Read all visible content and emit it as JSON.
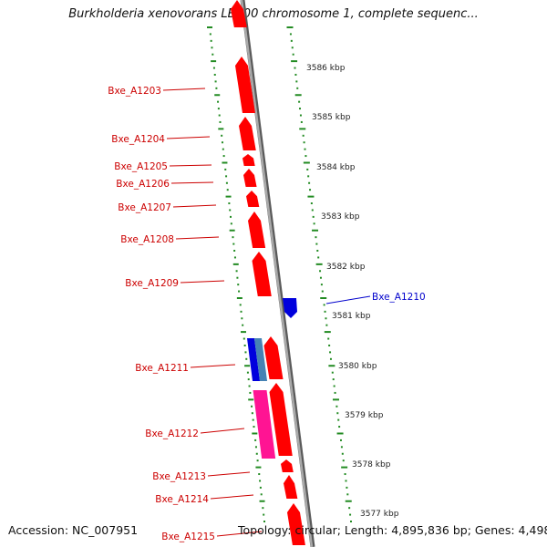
{
  "title": "Burkholderia xenovorans LB400 chromosome 1, complete sequenc...",
  "footer": {
    "accession": "Accession: NC_007951",
    "topology": "Topology: circular; Length: 4,895,836 bp; Genes: 4,498"
  },
  "colors": {
    "forward_gene": "#ff0000",
    "reverse_gene": "#0000dd",
    "pink_gene": "#ff1493",
    "steelblue_gene": "#4682b4",
    "backbone": "#888888",
    "tick": "#228b22",
    "forward_label": "#cc0000",
    "reverse_label": "#0000cc"
  },
  "scale_labels": [
    "3586 kbp",
    "3585 kbp",
    "3584 kbp",
    "3583 kbp",
    "3582 kbp",
    "3581 kbp",
    "3580 kbp",
    "3579 kbp",
    "3578 kbp",
    "3577 kbp"
  ],
  "gene_labels": [
    {
      "text": "Bxe_A1203",
      "strand": "forward"
    },
    {
      "text": "Bxe_A1204",
      "strand": "forward"
    },
    {
      "text": "Bxe_A1205",
      "strand": "forward"
    },
    {
      "text": "Bxe_A1206",
      "strand": "forward"
    },
    {
      "text": "Bxe_A1207",
      "strand": "forward"
    },
    {
      "text": "Bxe_A1208",
      "strand": "forward"
    },
    {
      "text": "Bxe_A1209",
      "strand": "forward"
    },
    {
      "text": "Bxe_A1210",
      "strand": "reverse"
    },
    {
      "text": "Bxe_A1211",
      "strand": "forward"
    },
    {
      "text": "Bxe_A1212",
      "strand": "forward"
    },
    {
      "text": "Bxe_A1213",
      "strand": "forward"
    },
    {
      "text": "Bxe_A1214",
      "strand": "forward"
    },
    {
      "text": "Bxe_A1215",
      "strand": "forward"
    }
  ]
}
